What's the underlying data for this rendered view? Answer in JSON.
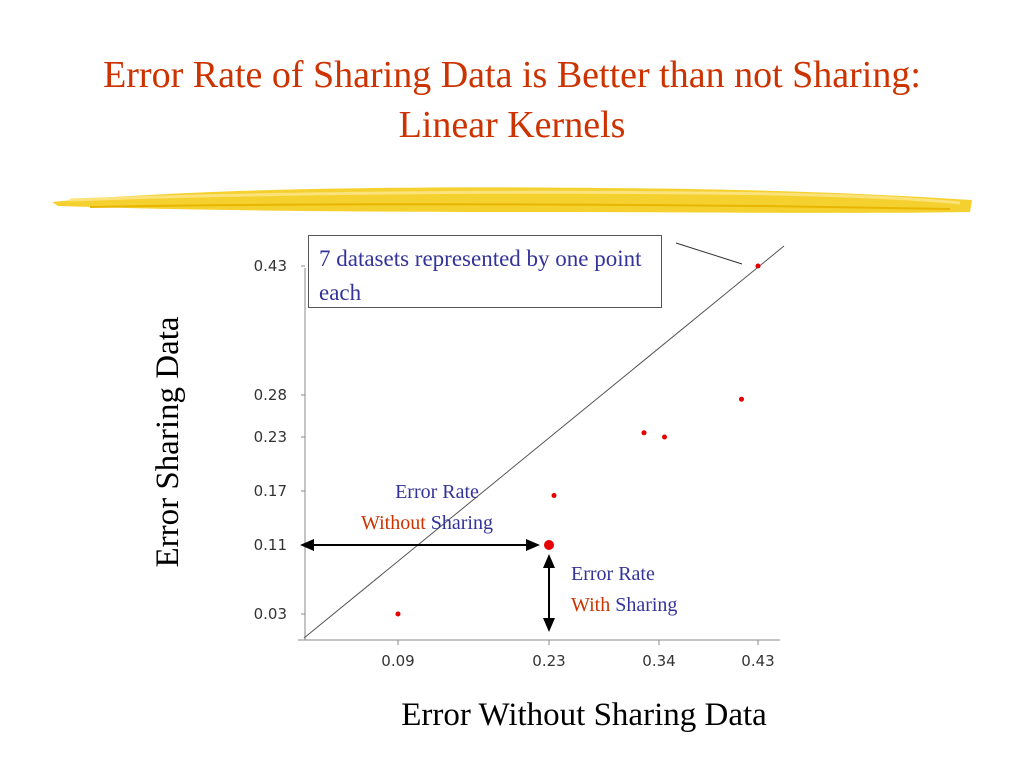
{
  "title": {
    "line1": "Error Rate of Sharing Data is Better than not Sharing:",
    "line2": "Linear Kernels"
  },
  "callout": {
    "text": "7 datasets represented by one point each"
  },
  "annotations": {
    "without": {
      "line1": "Error Rate",
      "line2_red": "Without",
      "line2_blue": "Sharing"
    },
    "with": {
      "line1": "Error Rate",
      "line2_red": "With",
      "line2_blue": "Sharing"
    }
  },
  "colors": {
    "title": "#cc3300",
    "annotation": "#333399",
    "point": "#e60000",
    "highlight": "#f2c500"
  },
  "chart_data": {
    "type": "scatter",
    "xlabel": "Error Without Sharing Data",
    "ylabel": "Error Sharing Data",
    "x_ticks": [
      {
        "value": 0.09,
        "label": "0.09"
      },
      {
        "value": 0.23,
        "label": "0.23"
      },
      {
        "value": 0.34,
        "label": "0.34"
      },
      {
        "value": 0.43,
        "label": "0.43"
      }
    ],
    "y_ticks": [
      {
        "value": 0.43,
        "label": "0.43"
      },
      {
        "value": 0.28,
        "label": "0.28"
      },
      {
        "value": 0.23,
        "label": "0.23"
      },
      {
        "value": 0.17,
        "label": "0.17"
      },
      {
        "value": 0.11,
        "label": "0.11"
      },
      {
        "value": 0.03,
        "label": "0.03"
      }
    ],
    "points": [
      {
        "x": 0.09,
        "y": 0.03
      },
      {
        "x": 0.23,
        "y": 0.11,
        "highlighted": true
      },
      {
        "x": 0.235,
        "y": 0.165
      },
      {
        "x": 0.325,
        "y": 0.235
      },
      {
        "x": 0.345,
        "y": 0.23
      },
      {
        "x": 0.415,
        "y": 0.275
      },
      {
        "x": 0.43,
        "y": 0.43
      }
    ],
    "diagonal": "y = x",
    "grid": false,
    "legend": "none"
  }
}
